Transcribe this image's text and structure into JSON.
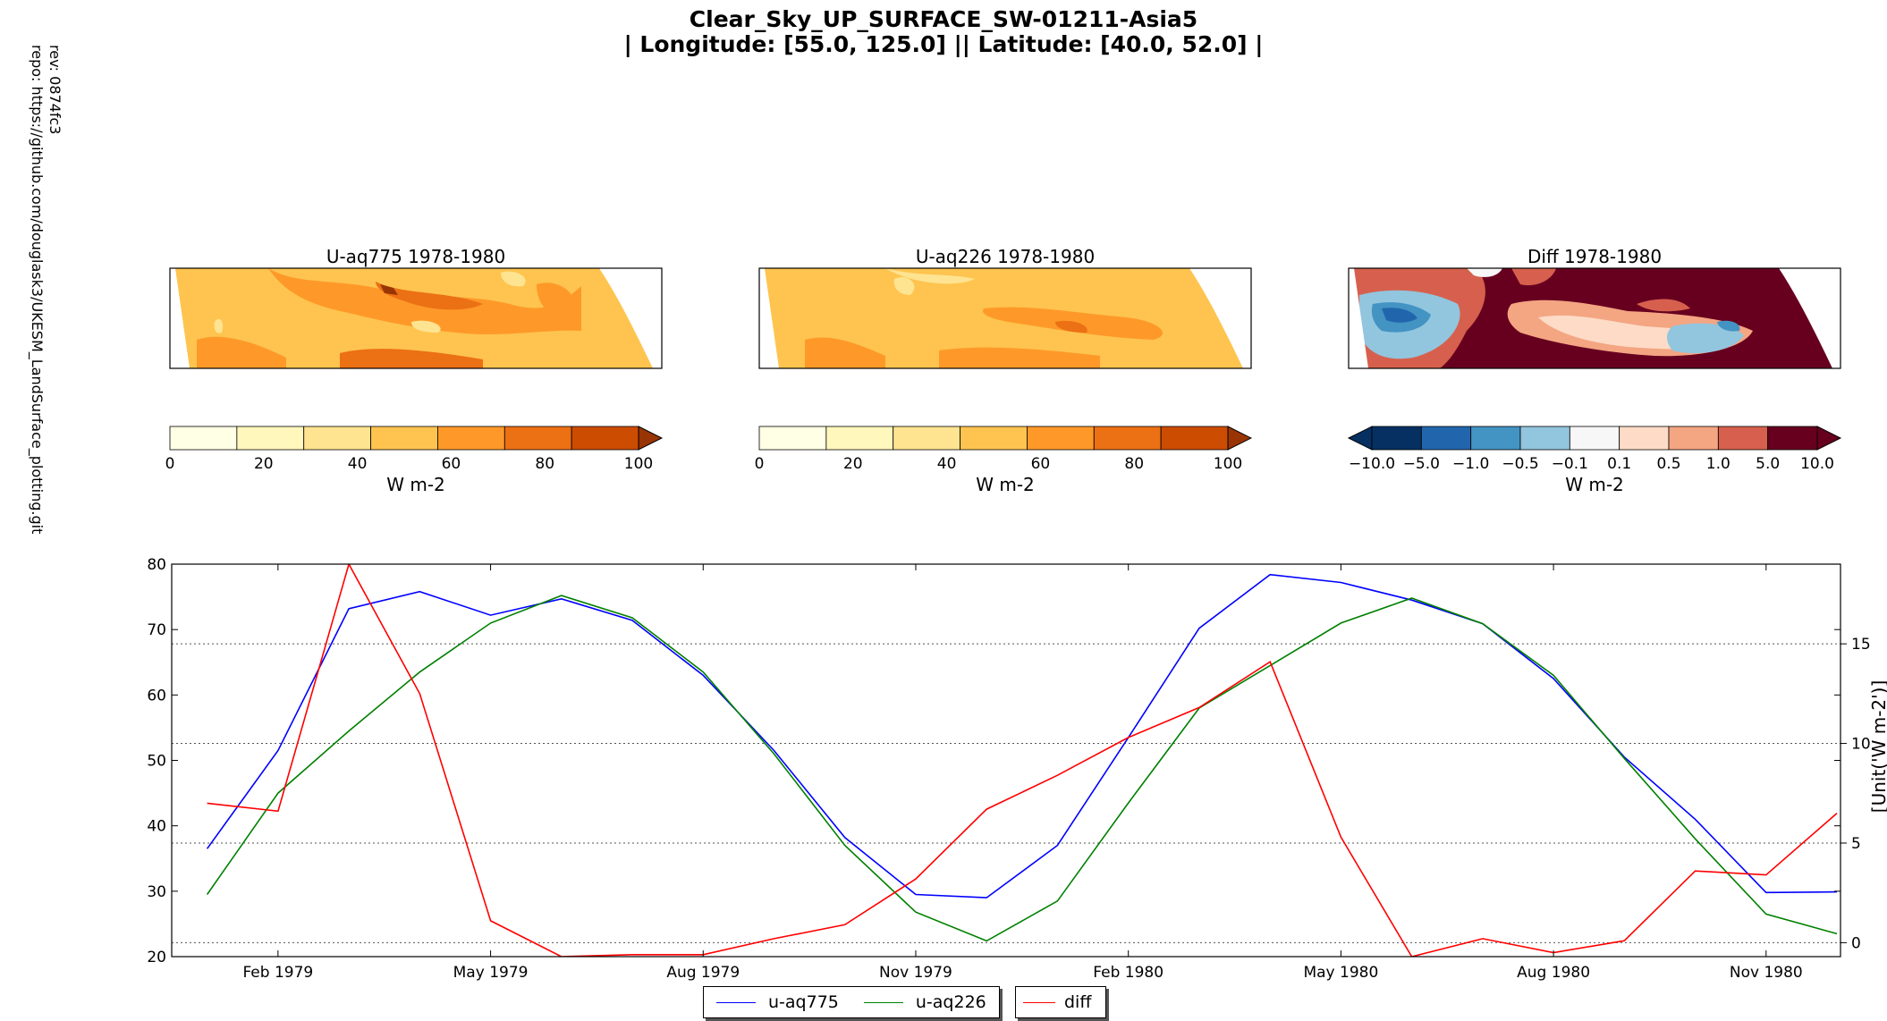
{
  "figure": {
    "title_line1": "Clear_Sky_UP_SURFACE_SW-01211-Asia5",
    "title_line2": "| Longitude: [55.0, 125.0] || Latitude: [40.0, 52.0] |",
    "rev": "rev:  0874fc3",
    "repo": "repo: https://github.com/douglask3/UKESM_LandSurface_plotting.git"
  },
  "maps": [
    {
      "title": "U-aq775 1978-1980",
      "colorbar_unit": "W m-2",
      "colorbar_ticks": [
        "0",
        "20",
        "40",
        "60",
        "80",
        "100"
      ],
      "colors": [
        "#ffffe5",
        "#fff7bc",
        "#fee391",
        "#fec44f",
        "#fe9929",
        "#ec7014",
        "#cc4c02",
        "#993404"
      ]
    },
    {
      "title": "U-aq226 1978-1980",
      "colorbar_unit": "W m-2",
      "colorbar_ticks": [
        "0",
        "20",
        "40",
        "60",
        "80",
        "100"
      ],
      "colors": [
        "#ffffe5",
        "#fff7bc",
        "#fee391",
        "#fec44f",
        "#fe9929",
        "#ec7014",
        "#cc4c02",
        "#993404"
      ]
    },
    {
      "title": "Diff 1978-1980",
      "colorbar_unit": "W m-2",
      "colorbar_ticks": [
        "−10.0",
        "−5.0",
        "−1.0",
        "−0.5",
        "−0.1",
        "0.1",
        "0.5",
        "1.0",
        "5.0",
        "10.0"
      ],
      "colors": [
        "#053061",
        "#2166ac",
        "#4393c3",
        "#92c5de",
        "#f7f7f7",
        "#fddbc7",
        "#f4a582",
        "#d6604d",
        "#67001f"
      ]
    }
  ],
  "chart_data": {
    "type": "line",
    "x": [
      "1979-01",
      "1979-02",
      "1979-03",
      "1979-04",
      "1979-05",
      "1979-06",
      "1979-07",
      "1979-08",
      "1979-09",
      "1979-10",
      "1979-11",
      "1979-12",
      "1980-01",
      "1980-02",
      "1980-03",
      "1980-04",
      "1980-05",
      "1980-06",
      "1980-07",
      "1980-08",
      "1980-09",
      "1980-10",
      "1980-11",
      "1980-12"
    ],
    "x_tick_labels": [
      "Feb 1979",
      "May 1979",
      "Aug 1979",
      "Nov 1979",
      "Feb 1980",
      "May 1980",
      "Aug 1980",
      "Nov 1980"
    ],
    "ylim": [
      20,
      80
    ],
    "y_ticks": [
      20,
      30,
      40,
      50,
      60,
      70,
      80
    ],
    "y2lim": [
      -0.7,
      19.0
    ],
    "y2_ticks": [
      0,
      5,
      10,
      15
    ],
    "y2label": "[Unit('W m-2')]",
    "grid": "horizontal dotted on secondary axis",
    "legend_position": "bottom-center",
    "series": [
      {
        "name": "u-aq775",
        "color": "#0000ff",
        "axis": "left",
        "values": [
          36.5,
          51.5,
          73.2,
          75.8,
          72.2,
          74.7,
          71.4,
          63.0,
          51.5,
          38.2,
          29.5,
          29.0,
          37.0,
          53.5,
          70.2,
          78.4,
          77.2,
          74.5,
          70.9,
          62.5,
          50.5,
          41.0,
          29.8,
          29.9
        ]
      },
      {
        "name": "u-aq226",
        "color": "#008000",
        "axis": "left",
        "values": [
          29.5,
          45.0,
          54.5,
          63.5,
          71.0,
          75.2,
          71.8,
          63.5,
          51.0,
          37.0,
          26.8,
          22.4,
          28.5,
          43.5,
          58.0,
          64.5,
          71.0,
          74.8,
          70.9,
          63.0,
          50.3,
          38.0,
          26.5,
          23.5
        ]
      },
      {
        "name": "diff",
        "color": "#ff0000",
        "axis": "right",
        "values": [
          7.0,
          6.6,
          19.0,
          12.5,
          1.1,
          -0.7,
          -0.6,
          -0.6,
          0.2,
          0.9,
          3.2,
          6.7,
          8.4,
          10.3,
          11.8,
          14.1,
          5.3,
          -0.7,
          0.2,
          -0.5,
          0.1,
          3.6,
          3.4,
          6.5
        ]
      }
    ]
  }
}
